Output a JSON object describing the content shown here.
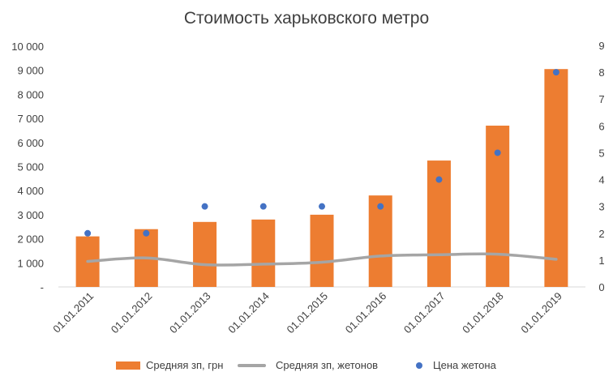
{
  "chart_data": {
    "type": "bar",
    "title": "Стоимость харьковского метро",
    "categories": [
      "01.01.2011",
      "01.01.2012",
      "01.01.2013",
      "01.01.2014",
      "01.01.2015",
      "01.01.2016",
      "01.01.2017",
      "01.01.2018",
      "01.01.2019"
    ],
    "left_axis": {
      "ylim": [
        0,
        10000
      ],
      "ticks": [
        0,
        1000,
        2000,
        3000,
        4000,
        5000,
        6000,
        7000,
        8000,
        9000,
        10000
      ],
      "tick_labels": [
        "-",
        "1 000",
        "2 000",
        "3 000",
        "4 000",
        "5 000",
        "6 000",
        "7 000",
        "8 000",
        "9 000",
        "10 000"
      ]
    },
    "right_axis": {
      "ylim": [
        0,
        9
      ],
      "ticks": [
        0,
        1,
        2,
        3,
        4,
        5,
        6,
        7,
        8,
        9
      ],
      "tick_labels": [
        "0",
        "1",
        "2",
        "3",
        "4",
        "5",
        "6",
        "7",
        "8",
        "9"
      ]
    },
    "series": [
      {
        "name": "Средняя зп, грн",
        "type": "bar",
        "axis": "left",
        "color": "#ED7D31",
        "values": [
          2100,
          2400,
          2700,
          2800,
          3000,
          3800,
          5250,
          6700,
          9050
        ]
      },
      {
        "name": "Средняя зп, жетонов",
        "type": "line",
        "axis": "right",
        "color": "#A5A5A5",
        "values": [
          0.95,
          1.08,
          0.83,
          0.85,
          0.92,
          1.15,
          1.2,
          1.22,
          1.03
        ]
      },
      {
        "name": "Цена жетона",
        "type": "scatter",
        "axis": "right",
        "color": "#4472C4",
        "values": [
          2,
          2,
          3,
          3,
          3,
          3,
          4,
          5,
          8
        ]
      }
    ],
    "legend_position": "bottom",
    "grid": false
  }
}
